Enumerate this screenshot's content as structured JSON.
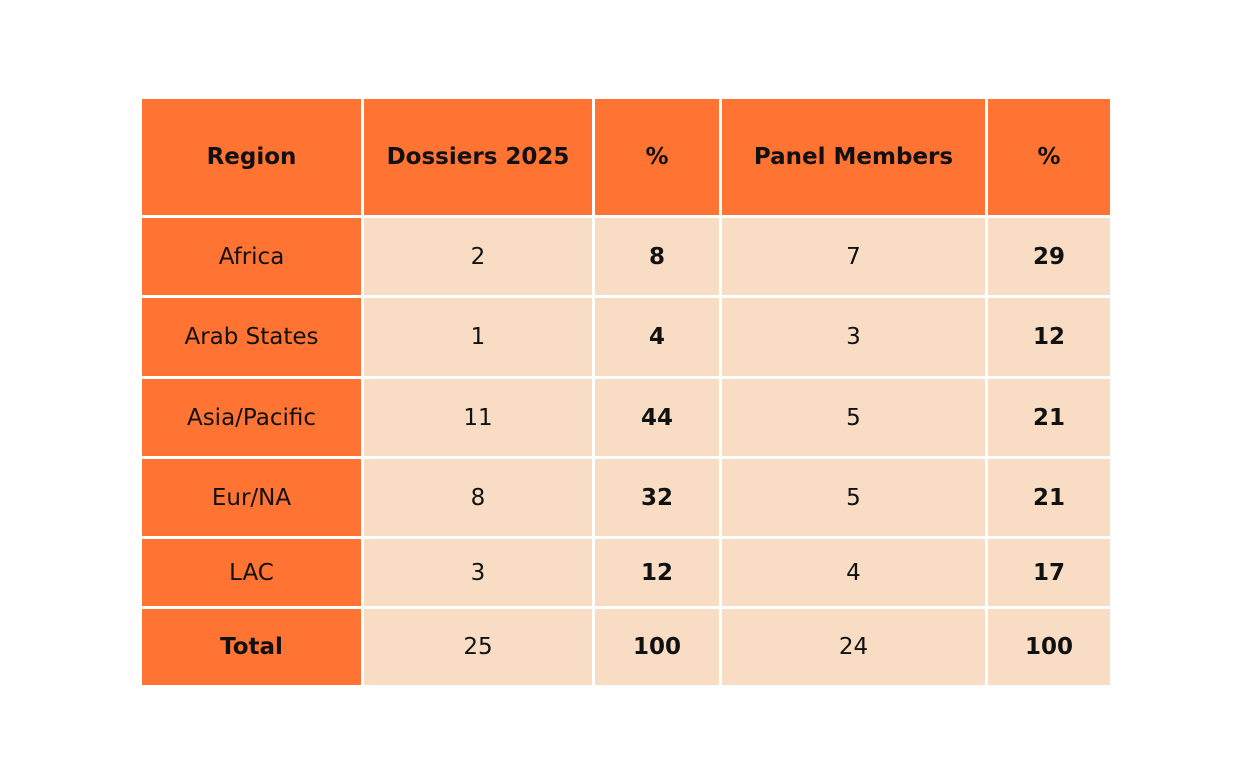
{
  "chart_data": {
    "type": "table",
    "columns": [
      "Region",
      "Dossiers 2025",
      "%",
      "Panel Members",
      "%"
    ],
    "rows": [
      {
        "region": "Africa",
        "dossiers": "2",
        "dossiers_pct": "8",
        "panel": "7",
        "panel_pct": "29"
      },
      {
        "region": "Arab States",
        "dossiers": "1",
        "dossiers_pct": "4",
        "panel": "3",
        "panel_pct": "12"
      },
      {
        "region": "Asia/Pacific",
        "dossiers": "11",
        "dossiers_pct": "44",
        "panel": "5",
        "panel_pct": "21"
      },
      {
        "region": "Eur/NA",
        "dossiers": "8",
        "dossiers_pct": "32",
        "panel": "5",
        "panel_pct": "21"
      },
      {
        "region": "LAC",
        "dossiers": "3",
        "dossiers_pct": "12",
        "panel": "4",
        "panel_pct": "17"
      },
      {
        "region": "Total",
        "dossiers": "25",
        "dossiers_pct": "100",
        "panel": "24",
        "panel_pct": "100"
      }
    ],
    "colors": {
      "header_bg": "#ff7333",
      "cell_bg": "#f9dcc4",
      "border": "#ffffff",
      "text": "#111111"
    }
  }
}
